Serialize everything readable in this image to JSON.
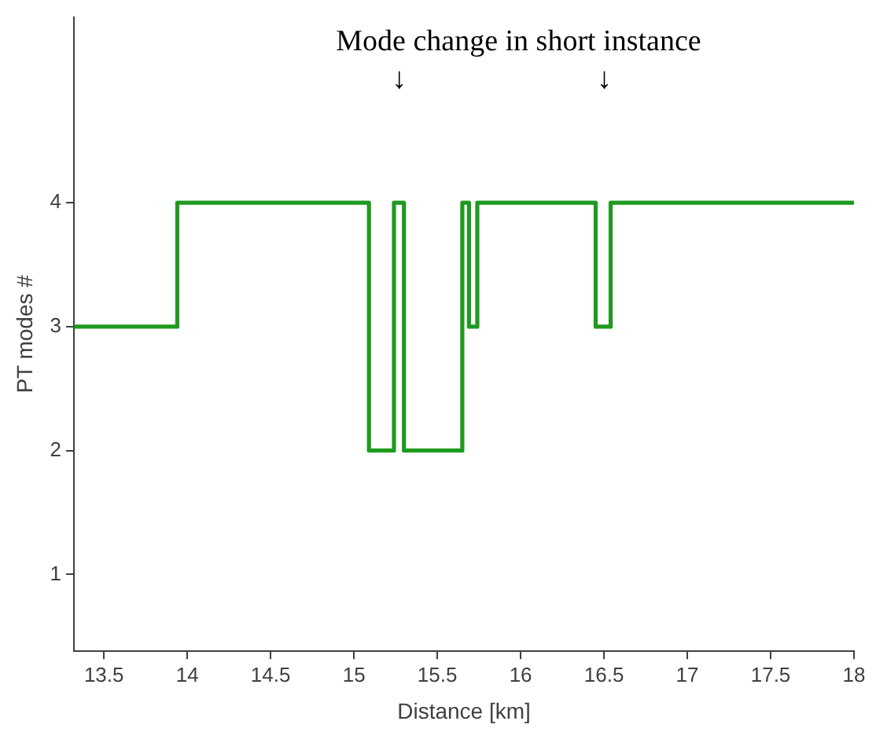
{
  "chart_data": {
    "type": "step",
    "xlabel": "Distance [km]",
    "ylabel": "PT modes #",
    "x": [
      13.32,
      13.94,
      15.09,
      15.24,
      15.3,
      15.65,
      15.69,
      15.74,
      16.45,
      16.54,
      18
    ],
    "series": [
      {
        "color": "#1f9a1f",
        "values": [
          3,
          4,
          2,
          4,
          2,
          4,
          3,
          4,
          3,
          4,
          4
        ]
      }
    ],
    "xlim": [
      13.32,
      18
    ],
    "xticks": [
      13.5,
      14,
      14.5,
      15,
      15.5,
      16,
      16.5,
      17,
      17.5,
      18
    ],
    "ylim": [
      0.38,
      5.5
    ],
    "yticks": [
      1,
      2,
      3,
      4
    ],
    "grid": false,
    "legend": false,
    "annotations": [
      "Mode change in short instance",
      "↓",
      "↓"
    ]
  }
}
